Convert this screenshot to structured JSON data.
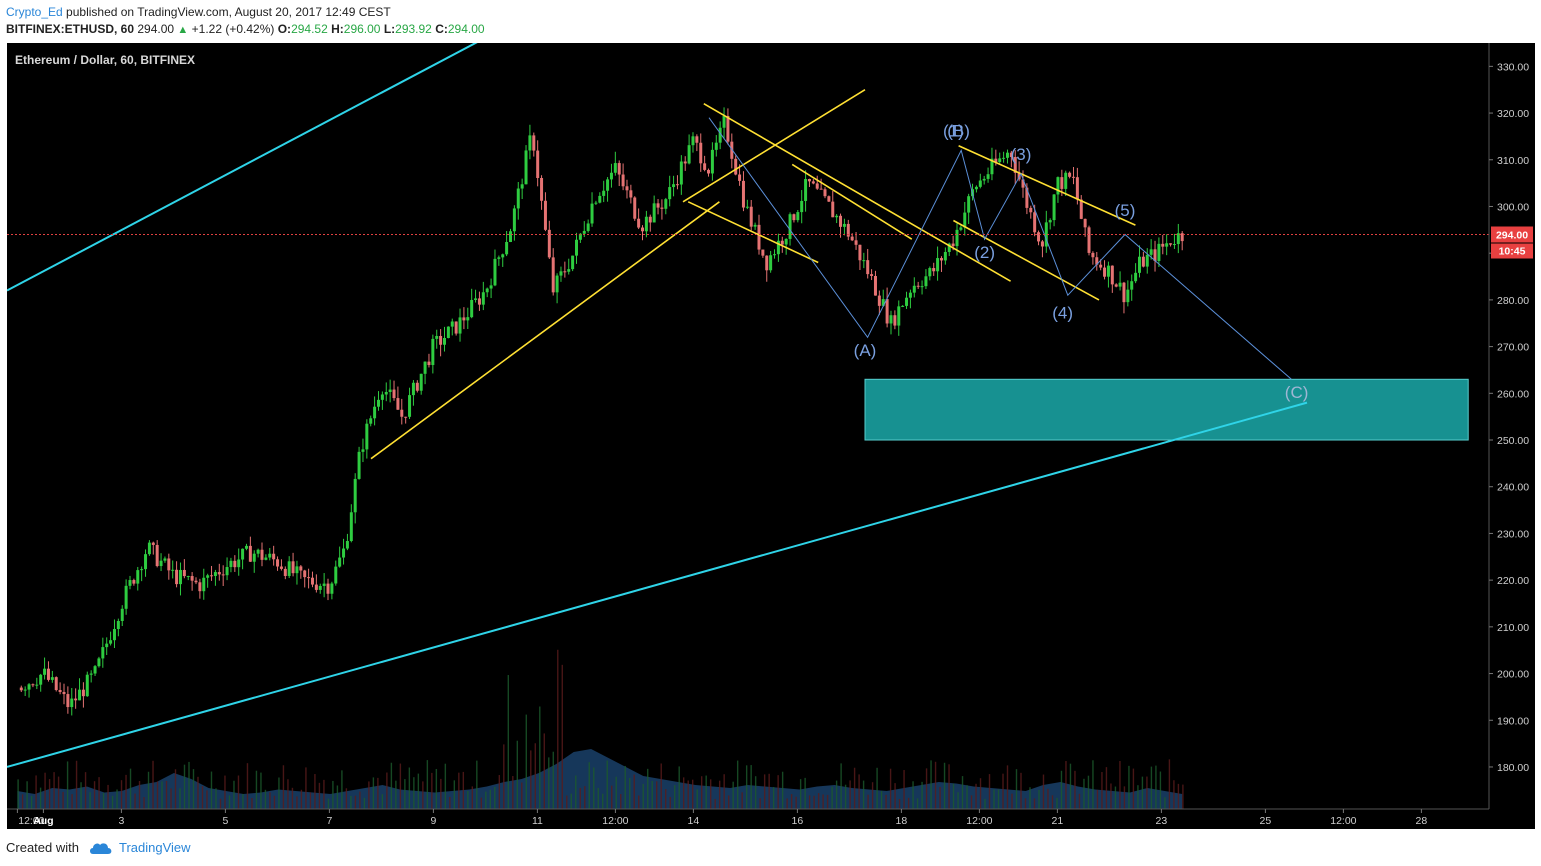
{
  "header": {
    "user": "Crypto_Ed",
    "published": "published on TradingView.com, August 20, 2017 12:49 CEST",
    "ticker": "BITFINEX:ETHUSD, 60",
    "last": "294.00",
    "change": "+1.22 (+0.42%)",
    "o_label": "O:",
    "o": "294.52",
    "h_label": "H:",
    "h": "296.00",
    "l_label": "L:",
    "l": "293.92",
    "c_label": "C:",
    "c": "294.00"
  },
  "footer": {
    "created": "Created with",
    "brand": "TradingView"
  },
  "colors": {
    "background": "#000000",
    "up": "#2ecc40",
    "down": "#e57373",
    "channel": "#2fd4e8",
    "pattern": "#ffe033",
    "wave": "#5b8fd8",
    "zone": "#1a9e9e"
  },
  "chart_data": {
    "type": "candlestick",
    "title": "Ethereum / Dollar, 60, BITFINEX",
    "ylim": [
      171,
      335
    ],
    "yticks": [
      "330.00",
      "320.00",
      "310.00",
      "300.00",
      "290.00",
      "280.00",
      "270.00",
      "260.00",
      "250.00",
      "240.00",
      "230.00",
      "220.00",
      "210.00",
      "200.00",
      "190.00",
      "180.00"
    ],
    "yticks_values": [
      330,
      320,
      310,
      300,
      290,
      280,
      270,
      260,
      250,
      240,
      230,
      220,
      210,
      200,
      190,
      180
    ],
    "xticks": [
      "12:00",
      "Aug",
      "3",
      "5",
      "7",
      "9",
      "11",
      "12:00",
      "14",
      "16",
      "18",
      "12:00",
      "21",
      "23",
      "25",
      "12:00",
      "28"
    ],
    "xticks_values": [
      0,
      0.5,
      2,
      4,
      6,
      8,
      10,
      11.5,
      13,
      15,
      17,
      18.5,
      20,
      22,
      24,
      25.5,
      27
    ],
    "current_price": "294.00",
    "countdown": "10:45",
    "price_path": [
      [
        0,
        197
      ],
      [
        0.5,
        200
      ],
      [
        1,
        193
      ],
      [
        1.5,
        200
      ],
      [
        2,
        215
      ],
      [
        2.5,
        227
      ],
      [
        3,
        221
      ],
      [
        3.5,
        219
      ],
      [
        4,
        223
      ],
      [
        4.5,
        226
      ],
      [
        5,
        224
      ],
      [
        5.5,
        220
      ],
      [
        6,
        219
      ],
      [
        6.3,
        227
      ],
      [
        6.6,
        248
      ],
      [
        7,
        262
      ],
      [
        7.4,
        255
      ],
      [
        8,
        270
      ],
      [
        8.5,
        275
      ],
      [
        9,
        282
      ],
      [
        9.5,
        296
      ],
      [
        9.9,
        316
      ],
      [
        10.3,
        282
      ],
      [
        10.7,
        290
      ],
      [
        11.1,
        302
      ],
      [
        11.5,
        308
      ],
      [
        12,
        296
      ],
      [
        12.5,
        302
      ],
      [
        13,
        314
      ],
      [
        13.3,
        308
      ],
      [
        13.6,
        318
      ],
      [
        14,
        300
      ],
      [
        14.4,
        288
      ],
      [
        14.8,
        295
      ],
      [
        15.2,
        305
      ],
      [
        15.6,
        300
      ],
      [
        16,
        294
      ],
      [
        16.4,
        285
      ],
      [
        16.8,
        275
      ],
      [
        17.2,
        283
      ],
      [
        17.6,
        286
      ],
      [
        18,
        293
      ],
      [
        18.4,
        304
      ],
      [
        18.8,
        309
      ],
      [
        19.1,
        312
      ],
      [
        19.4,
        301
      ],
      [
        19.7,
        292
      ],
      [
        20,
        305
      ],
      [
        20.3,
        306
      ],
      [
        20.6,
        290
      ],
      [
        21,
        286
      ],
      [
        21.3,
        281
      ],
      [
        21.6,
        288
      ],
      [
        21.9,
        290
      ],
      [
        22.2,
        293
      ],
      [
        22.4,
        294
      ]
    ],
    "volume_profile": [
      12,
      10,
      14,
      13,
      15,
      11,
      12,
      16,
      18,
      24,
      20,
      14,
      12,
      10,
      11,
      13,
      12,
      11,
      10,
      12,
      14,
      16,
      13,
      12,
      11,
      12,
      13,
      15,
      18,
      20,
      24,
      30,
      38,
      40,
      34,
      28,
      22,
      20,
      18,
      16,
      15,
      14,
      16,
      15,
      14,
      13,
      15,
      16,
      14,
      13,
      12,
      14,
      16,
      18,
      17,
      15,
      14,
      13,
      12,
      16,
      18,
      15,
      13,
      12,
      11,
      14,
      12,
      10
    ],
    "channel_lines": [
      {
        "name": "upper-channel",
        "points": [
          [
            -0.2,
            282
          ],
          [
            15.1,
            372
          ]
        ]
      },
      {
        "name": "lower-channel",
        "points": [
          [
            -0.2,
            180
          ],
          [
            24.8,
            258
          ]
        ]
      }
    ],
    "pattern_lines": [
      {
        "name": "rising-wedge-lower",
        "points": [
          [
            6.8,
            246
          ],
          [
            13.5,
            301
          ]
        ]
      },
      {
        "name": "rising-wedge-upper",
        "points": [
          [
            12.8,
            301
          ],
          [
            16.3,
            325
          ]
        ]
      },
      {
        "name": "flag-upper",
        "points": [
          [
            13.2,
            322
          ],
          [
            19.1,
            284
          ]
        ]
      },
      {
        "name": "flag-lower",
        "points": [
          [
            12.9,
            301
          ],
          [
            15.4,
            288
          ]
        ]
      },
      {
        "name": "flag-top-line",
        "points": [
          [
            14.9,
            309
          ],
          [
            17.2,
            293
          ]
        ]
      },
      {
        "name": "final-upper",
        "points": [
          [
            18.1,
            313
          ],
          [
            21.5,
            296
          ]
        ]
      },
      {
        "name": "final-lower",
        "points": [
          [
            18.0,
            297
          ],
          [
            20.8,
            280
          ]
        ]
      }
    ],
    "wave_path": [
      [
        13.3,
        319
      ],
      [
        16.35,
        272
      ],
      [
        18.15,
        312
      ],
      [
        18.6,
        293
      ],
      [
        19.3,
        307
      ],
      [
        20.2,
        281
      ],
      [
        21.3,
        294
      ],
      [
        24.5,
        263
      ]
    ],
    "wave_labels": [
      {
        "text": "(A)",
        "x": 16.3,
        "y": 268
      },
      {
        "text": "(B)",
        "x": 18.1,
        "y": 315
      },
      {
        "text": "(1)",
        "x": 18.0,
        "y": 315
      },
      {
        "text": "(2)",
        "x": 18.6,
        "y": 289
      },
      {
        "text": "(3)",
        "x": 19.3,
        "y": 310
      },
      {
        "text": "(4)",
        "x": 20.1,
        "y": 276
      },
      {
        "text": "(5)",
        "x": 21.3,
        "y": 298
      },
      {
        "text": "(C)",
        "x": 24.6,
        "y": 259
      }
    ],
    "target_zone": {
      "x0": 16.3,
      "x1": 27.9,
      "y0": 250,
      "y1": 263
    }
  }
}
